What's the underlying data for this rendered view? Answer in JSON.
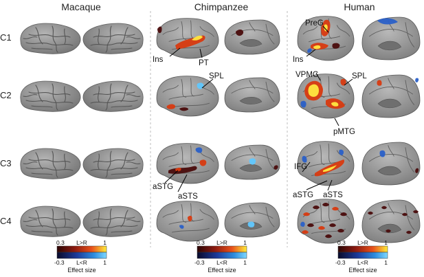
{
  "columns": [
    "Macaque",
    "Chimpanzee",
    "Human"
  ],
  "rows": [
    "C1",
    "C2",
    "C3",
    "C4"
  ],
  "annotations": {
    "chimp_c1": [
      "Ins",
      "PT"
    ],
    "chimp_c2": [
      "SPL"
    ],
    "chimp_c3": [
      "aSTG",
      "aSTS"
    ],
    "human_c1": [
      "PreG",
      "Ins"
    ],
    "human_c2": [
      "VPMC",
      "SPL",
      "pMTG"
    ],
    "human_c3": [
      "IFG",
      "aSTG",
      "aSTS"
    ]
  },
  "colorbar": {
    "top_min": "0.3",
    "top_label": "L>R",
    "top_max": "1",
    "bottom_min": "-0.3",
    "bottom_label": "L<R",
    "bottom_max": "1",
    "title": "Effect size"
  },
  "colors": {
    "cortex": "#8e8e8e",
    "warm_low": "#4a0c0c",
    "warm_mid": "#d83a10",
    "warm_high": "#ffe840",
    "cool_low": "#101640",
    "cool_mid": "#2a60c8",
    "cool_high": "#60c8ff",
    "divider": "#bdbdbd"
  }
}
